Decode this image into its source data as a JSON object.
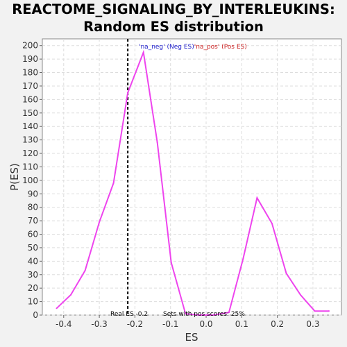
{
  "chart_data": {
    "type": "line",
    "title_line1": "REACTOME_SIGNALING_BY_INTERLEUKINS:",
    "title_line2": "Random ES distribution",
    "xlabel": "ES",
    "ylabel": "P(ES)",
    "xlim": [
      -0.46,
      0.38
    ],
    "ylim": [
      0,
      205
    ],
    "xticks": [
      -0.4,
      -0.3,
      -0.2,
      -0.1,
      0.0,
      0.1,
      0.2,
      0.3
    ],
    "xtick_labels": [
      "-0.4",
      "-0.3",
      "-0.2",
      "-0.1",
      "0.0",
      "0.1",
      "0.2",
      "0.3"
    ],
    "yticks": [
      0,
      10,
      20,
      30,
      40,
      50,
      60,
      70,
      80,
      90,
      100,
      110,
      120,
      130,
      140,
      150,
      160,
      170,
      180,
      190,
      200
    ],
    "grid": true,
    "series": [
      {
        "color": "#ee44ee",
        "x": [
          -0.42,
          -0.38,
          -0.34,
          -0.3,
          -0.26,
          -0.22,
          -0.176,
          -0.137,
          -0.098,
          -0.058,
          -0.02,
          0.02,
          0.064,
          0.104,
          0.143,
          0.185,
          0.225,
          0.265,
          0.305,
          0.345
        ],
        "y": [
          5,
          15,
          33,
          69,
          98,
          165,
          195,
          128,
          39,
          1,
          0,
          0,
          2,
          42,
          87,
          68,
          31,
          15,
          3,
          3
        ]
      }
    ],
    "real_es": -0.22,
    "real_es_label": "Real ES -0.2",
    "sets_label": "Sets with pos scores: 25%",
    "legend_neg": "'na_neg' (Neg ES)",
    "legend_pos": "'na_pos' (Pos ES)",
    "neg_color": "#2222cc",
    "pos_color": "#cc2222"
  }
}
